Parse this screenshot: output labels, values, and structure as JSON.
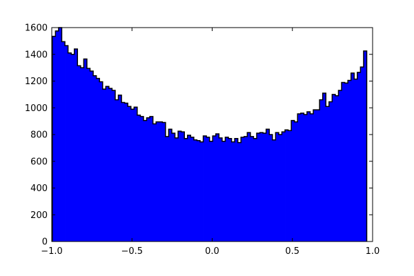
{
  "chart_data": {
    "type": "bar",
    "title": "",
    "xlabel": "",
    "ylabel": "",
    "xlim": [
      -1.0,
      1.0
    ],
    "ylim": [
      0,
      1600
    ],
    "grid": false,
    "colors": {
      "fill": "#0000ff",
      "edge": "#000000"
    },
    "x_ticks": [
      {
        "value": -1.0,
        "label": "−1.0"
      },
      {
        "value": -0.5,
        "label": "−0.5"
      },
      {
        "value": 0.0,
        "label": "0.0"
      },
      {
        "value": 0.5,
        "label": "0.5"
      },
      {
        "value": 1.0,
        "label": "1.0"
      }
    ],
    "y_ticks": [
      {
        "value": 0,
        "label": "0"
      },
      {
        "value": 200,
        "label": "200"
      },
      {
        "value": 400,
        "label": "400"
      },
      {
        "value": 600,
        "label": "600"
      },
      {
        "value": 800,
        "label": "800"
      },
      {
        "value": 1000,
        "label": "1000"
      },
      {
        "value": 1200,
        "label": "1200"
      },
      {
        "value": 1400,
        "label": "1400"
      },
      {
        "value": 1600,
        "label": "1600"
      }
    ],
    "bins": {
      "start": -0.9965,
      "width": 0.0196,
      "counts": [
        1535,
        1575,
        1600,
        1495,
        1465,
        1410,
        1400,
        1440,
        1315,
        1300,
        1365,
        1295,
        1275,
        1240,
        1220,
        1195,
        1140,
        1160,
        1145,
        1130,
        1060,
        1095,
        1040,
        1035,
        1010,
        990,
        1005,
        945,
        935,
        905,
        925,
        935,
        880,
        895,
        895,
        890,
        785,
        840,
        810,
        775,
        825,
        820,
        770,
        795,
        780,
        760,
        755,
        745,
        790,
        780,
        750,
        790,
        805,
        775,
        750,
        780,
        770,
        745,
        770,
        740,
        780,
        785,
        815,
        785,
        770,
        810,
        815,
        810,
        840,
        800,
        760,
        815,
        800,
        820,
        835,
        830,
        905,
        895,
        955,
        960,
        950,
        970,
        955,
        985,
        985,
        1060,
        1110,
        1010,
        1045,
        1100,
        1090,
        1130,
        1190,
        1185,
        1205,
        1260,
        1215,
        1265,
        1305,
        1425
      ]
    }
  }
}
